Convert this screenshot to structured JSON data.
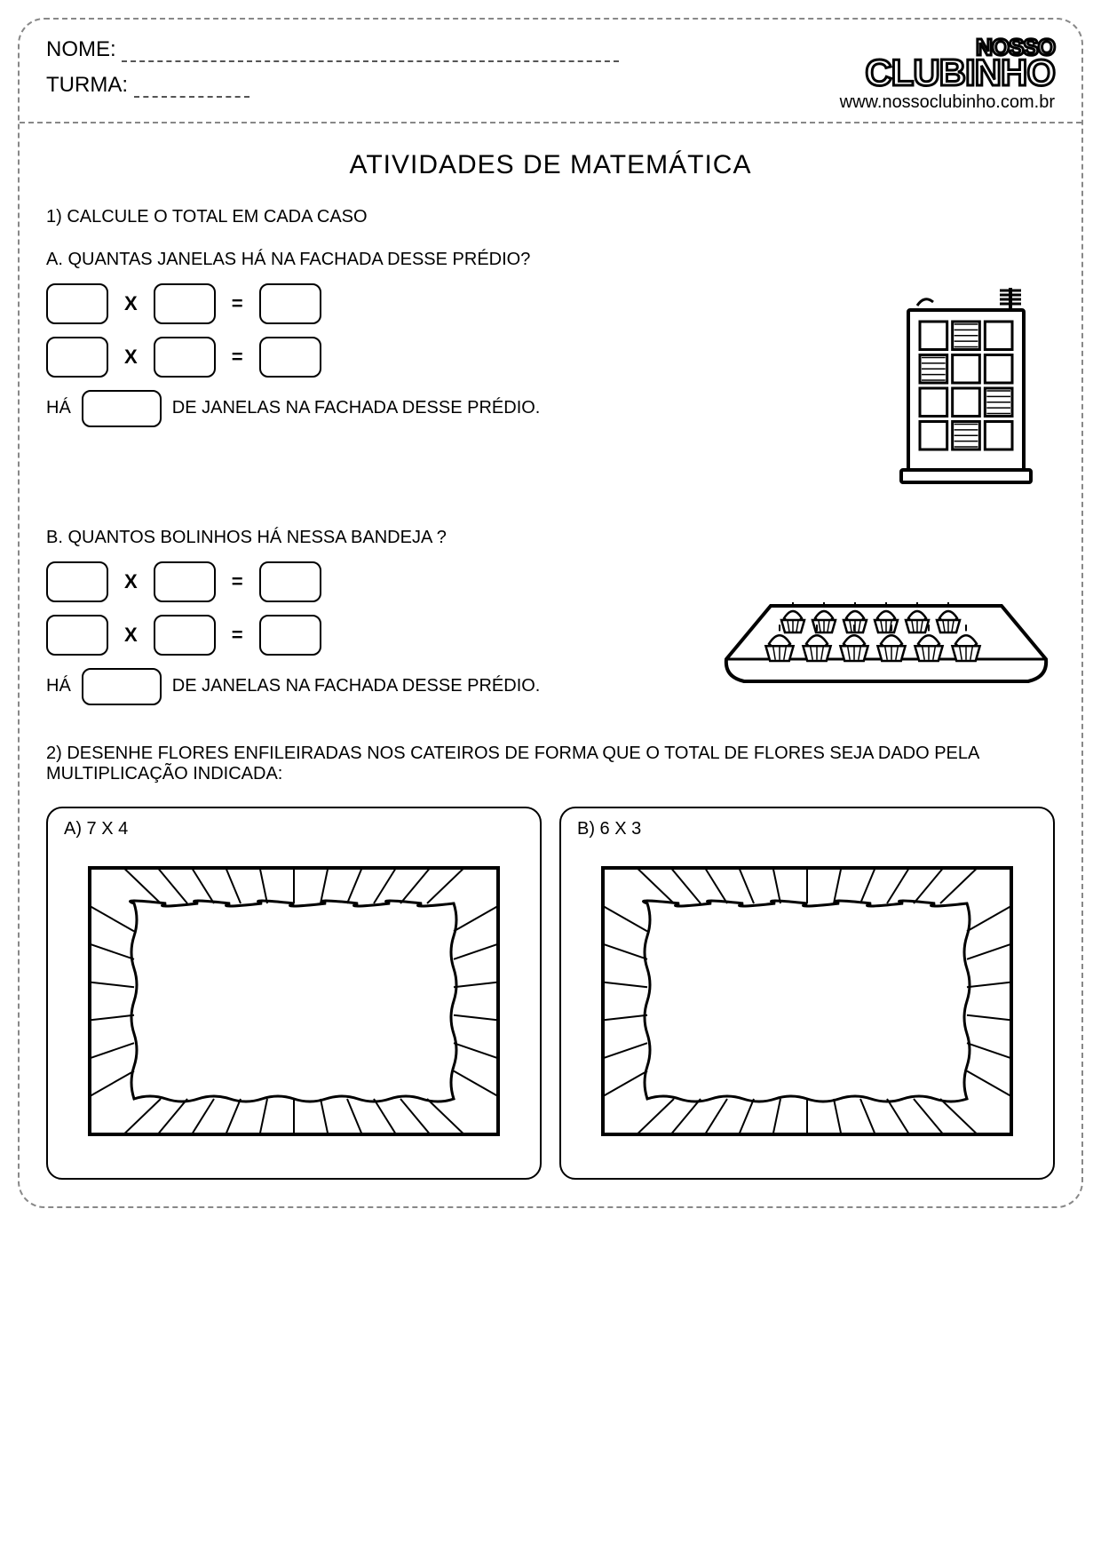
{
  "header": {
    "name_label": "NOME:",
    "name_blank_width": 560,
    "class_label": "TURMA:",
    "class_blank_width": 130,
    "logo_top": "NOSSO",
    "logo_main": "CLUBINHO",
    "url": "www.nossoclubinho.com.br"
  },
  "main_title": "ATIVIDADES DE MATEMÁTICA",
  "q1": {
    "instruction": "1) CALCULE O TOTAL EM CADA CASO",
    "a": {
      "prompt": "A. QUANTAS JANELAS HÁ NA FACHADA DESSE PRÉDIO?",
      "op_times": "X",
      "op_equals": "=",
      "summary_prefix": "HÁ",
      "summary_suffix": "DE JANELAS NA FACHADA DESSE PRÉDIO.",
      "building": {
        "rows": 4,
        "cols": 3,
        "outline_color": "#000000",
        "fill_color": "#ffffff"
      }
    },
    "b": {
      "prompt": "B. QUANTOS BOLINHOS HÁ NESSA BANDEJA ?",
      "op_times": "X",
      "op_equals": "=",
      "summary_prefix": "HÁ",
      "summary_suffix": "DE JANELAS NA FACHADA DESSE PRÉDIO.",
      "cupcakes": {
        "rows": 2,
        "cols": 6
      }
    }
  },
  "q2": {
    "instruction": "2) DESENHE FLORES ENFILEIRADAS NOS CATEIROS DE FORMA QUE O TOTAL DE FLORES SEJA DADO PELA MULTIPLICAÇÃO INDICADA:",
    "a_label": "A) 7 X 4",
    "b_label": "B) 6 X 3"
  },
  "style": {
    "border_color": "#888888",
    "box_border": "#000000",
    "background": "#ffffff",
    "font_family": "Comic Sans MS"
  }
}
